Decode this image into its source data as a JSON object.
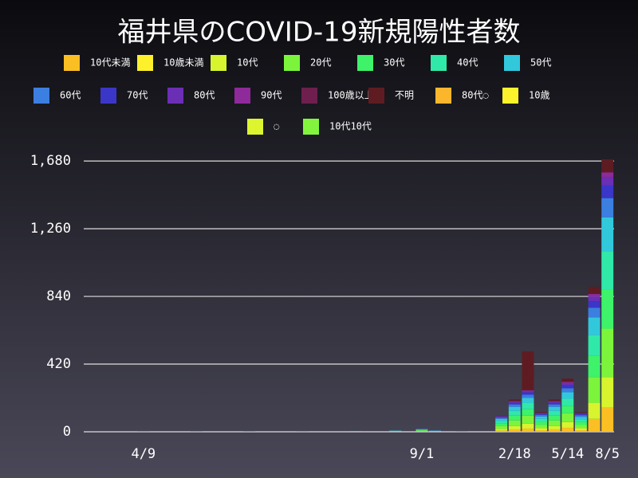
{
  "chart_data": {
    "type": "stacked-bar",
    "title": "福井県のCOVID-19新規陽性者数",
    "categories": [
      null,
      null,
      null,
      null,
      "4/9",
      null,
      null,
      null,
      null,
      null,
      null,
      null,
      null,
      null,
      null,
      null,
      null,
      null,
      null,
      null,
      null,
      null,
      null,
      null,
      null,
      "9/1",
      null,
      null,
      null,
      null,
      null,
      null,
      "2/18",
      null,
      null,
      null,
      "5/14",
      null,
      null,
      "8/5"
    ],
    "ylim": [
      0,
      1740
    ],
    "yticks": [
      0,
      420,
      840,
      {
        "value": 1260,
        "label": "1,260"
      },
      {
        "value": 1680,
        "label": "1,680"
      }
    ],
    "grid": true,
    "series": [
      {
        "name": "10代未満",
        "color": "#fbbf24",
        "values": [
          0,
          0,
          0,
          0,
          0,
          0,
          0,
          0,
          0,
          0,
          0,
          0,
          0,
          0,
          0,
          0,
          0,
          0,
          0,
          0,
          1,
          0,
          0,
          1,
          0,
          2,
          1,
          0,
          0,
          0,
          0,
          8,
          15,
          20,
          10,
          15,
          25,
          10,
          80,
          150
        ]
      },
      {
        "name": "10歳未満",
        "color": "#fef02a",
        "values": [
          0,
          0,
          0,
          0,
          0,
          0,
          0,
          0,
          0,
          0,
          0,
          0,
          0,
          0,
          0,
          0,
          0,
          0,
          0,
          0,
          0,
          0,
          0,
          0,
          0,
          0,
          0,
          0,
          0,
          0,
          0,
          0,
          0,
          0,
          0,
          0,
          0,
          0,
          0,
          0
        ]
      },
      {
        "name": "10代",
        "color": "#d7f42e",
        "values": [
          0,
          0,
          0,
          0,
          0,
          0,
          0,
          0,
          0,
          0,
          0,
          0,
          0,
          0,
          0,
          0,
          0,
          0,
          0,
          0,
          0,
          0,
          0,
          1,
          0,
          2,
          1,
          0,
          0,
          0,
          0,
          10,
          20,
          30,
          12,
          20,
          35,
          12,
          100,
          190
        ]
      },
      {
        "name": "20代",
        "color": "#7cf43c",
        "values": [
          0,
          0,
          0,
          0,
          1,
          0,
          0,
          0,
          1,
          0,
          0,
          0,
          1,
          0,
          0,
          0,
          1,
          0,
          0,
          0,
          1,
          0,
          0,
          2,
          0,
          4,
          2,
          0,
          1,
          0,
          0,
          20,
          35,
          50,
          22,
          35,
          55,
          20,
          160,
          300
        ]
      },
      {
        "name": "30代",
        "color": "#3ef26a",
        "values": [
          0,
          0,
          0,
          0,
          1,
          0,
          0,
          0,
          0,
          0,
          0,
          0,
          0,
          0,
          0,
          0,
          1,
          0,
          0,
          0,
          1,
          0,
          0,
          1,
          0,
          3,
          1,
          0,
          0,
          0,
          0,
          15,
          30,
          40,
          18,
          30,
          45,
          18,
          130,
          240
        ]
      },
      {
        "name": "40代",
        "color": "#30e8a8",
        "values": [
          0,
          0,
          0,
          0,
          0,
          0,
          0,
          0,
          1,
          0,
          0,
          0,
          0,
          0,
          0,
          0,
          0,
          0,
          0,
          0,
          1,
          0,
          0,
          1,
          0,
          3,
          1,
          0,
          1,
          0,
          0,
          15,
          30,
          40,
          18,
          30,
          45,
          18,
          130,
          240
        ]
      },
      {
        "name": "50代",
        "color": "#32c8dc",
        "values": [
          0,
          0,
          0,
          0,
          1,
          0,
          0,
          0,
          0,
          0,
          0,
          0,
          1,
          0,
          0,
          0,
          1,
          0,
          0,
          0,
          1,
          0,
          0,
          1,
          0,
          2,
          1,
          0,
          0,
          0,
          0,
          12,
          25,
          30,
          15,
          25,
          40,
          15,
          110,
          210
        ]
      },
      {
        "name": "60代",
        "color": "#3b7fe0",
        "values": [
          0,
          0,
          0,
          0,
          0,
          0,
          0,
          0,
          0,
          0,
          0,
          0,
          0,
          0,
          0,
          0,
          0,
          0,
          0,
          0,
          0,
          0,
          0,
          1,
          0,
          2,
          1,
          0,
          0,
          0,
          0,
          8,
          15,
          20,
          10,
          15,
          25,
          10,
          60,
          120
        ]
      },
      {
        "name": "70代",
        "color": "#3a36c8",
        "values": [
          0,
          0,
          0,
          0,
          0,
          0,
          0,
          0,
          0,
          0,
          0,
          0,
          0,
          0,
          0,
          0,
          0,
          0,
          0,
          0,
          0,
          0,
          0,
          0,
          0,
          1,
          1,
          0,
          0,
          0,
          0,
          5,
          10,
          15,
          6,
          10,
          20,
          6,
          40,
          80
        ]
      },
      {
        "name": "80代",
        "color": "#6a2fb5",
        "values": [
          0,
          0,
          0,
          0,
          0,
          0,
          0,
          0,
          0,
          0,
          0,
          0,
          0,
          0,
          0,
          0,
          0,
          0,
          0,
          0,
          0,
          0,
          0,
          0,
          0,
          1,
          0,
          0,
          0,
          0,
          0,
          3,
          6,
          8,
          4,
          6,
          12,
          4,
          30,
          50
        ]
      },
      {
        "name": "90代",
        "color": "#8e2a9a",
        "values": [
          0,
          0,
          0,
          0,
          0,
          0,
          0,
          0,
          0,
          0,
          0,
          0,
          0,
          0,
          0,
          0,
          0,
          0,
          0,
          0,
          0,
          0,
          0,
          0,
          0,
          0,
          0,
          0,
          0,
          0,
          0,
          2,
          4,
          5,
          2,
          4,
          8,
          2,
          15,
          30
        ]
      },
      {
        "name": "100歳以上",
        "color": "#6e1f4e",
        "values": [
          0,
          0,
          0,
          0,
          0,
          0,
          0,
          0,
          0,
          0,
          0,
          0,
          0,
          0,
          0,
          0,
          0,
          0,
          0,
          0,
          0,
          0,
          0,
          0,
          0,
          0,
          0,
          0,
          0,
          0,
          0,
          0,
          0,
          0,
          0,
          0,
          0,
          0,
          0,
          0
        ]
      },
      {
        "name": "不明",
        "color": "#5e1c22",
        "values": [
          0,
          0,
          0,
          0,
          0,
          0,
          0,
          0,
          0,
          0,
          0,
          0,
          0,
          0,
          0,
          0,
          0,
          0,
          0,
          0,
          0,
          0,
          0,
          0,
          0,
          0,
          0,
          0,
          0,
          0,
          0,
          2,
          10,
          240,
          5,
          10,
          20,
          5,
          45,
          80
        ]
      },
      {
        "name": "80代◌",
        "color": "#fbb62c",
        "values": [
          0,
          0,
          0,
          0,
          0,
          0,
          0,
          0,
          0,
          0,
          0,
          0,
          0,
          0,
          0,
          0,
          0,
          0,
          0,
          0,
          0,
          0,
          0,
          0,
          0,
          0,
          0,
          0,
          0,
          0,
          0,
          0,
          0,
          0,
          0,
          0,
          0,
          0,
          0,
          0
        ]
      },
      {
        "name": "10歳",
        "color": "#fef22c",
        "values": [
          0,
          0,
          0,
          0,
          0,
          0,
          0,
          0,
          0,
          0,
          0,
          0,
          0,
          0,
          0,
          0,
          0,
          0,
          0,
          0,
          0,
          0,
          0,
          0,
          0,
          0,
          0,
          0,
          0,
          0,
          0,
          0,
          0,
          0,
          0,
          0,
          0,
          0,
          0,
          0
        ]
      },
      {
        "name": "◌",
        "color": "#dcf52e",
        "values": [
          0,
          0,
          0,
          0,
          0,
          0,
          0,
          0,
          0,
          0,
          0,
          0,
          0,
          0,
          0,
          0,
          0,
          0,
          0,
          0,
          0,
          0,
          0,
          0,
          0,
          0,
          0,
          0,
          0,
          0,
          0,
          0,
          0,
          0,
          0,
          0,
          0,
          0,
          0,
          0
        ]
      },
      {
        "name": "10代10代",
        "color": "#82f43e",
        "values": [
          0,
          0,
          0,
          0,
          0,
          0,
          0,
          0,
          0,
          0,
          0,
          0,
          0,
          0,
          0,
          0,
          0,
          0,
          0,
          0,
          0,
          0,
          0,
          0,
          0,
          0,
          0,
          0,
          0,
          0,
          0,
          0,
          0,
          0,
          0,
          0,
          0,
          0,
          0,
          0
        ]
      }
    ]
  }
}
